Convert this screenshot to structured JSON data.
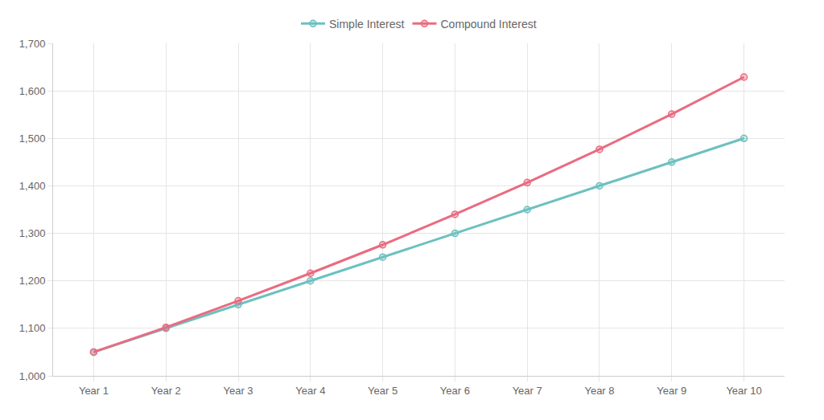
{
  "chart_data": {
    "type": "line",
    "categories": [
      "Year 1",
      "Year 2",
      "Year 3",
      "Year 4",
      "Year 5",
      "Year 6",
      "Year 7",
      "Year 8",
      "Year 9",
      "Year 10"
    ],
    "series": [
      {
        "name": "Simple Interest",
        "color": "#6cc0c0",
        "marker": "circle",
        "values": [
          1050,
          1100,
          1150,
          1200,
          1250,
          1300,
          1350,
          1400,
          1450,
          1500
        ]
      },
      {
        "name": "Compound Interest",
        "color": "#ea6b81",
        "marker": "circle",
        "values": [
          1050,
          1102,
          1158,
          1216,
          1276,
          1340,
          1407,
          1477,
          1551,
          1629
        ]
      }
    ],
    "ylim": [
      1000,
      1700
    ],
    "yticks": [
      {
        "value": 1000,
        "label": "1,000"
      },
      {
        "value": 1100,
        "label": "1,100"
      },
      {
        "value": 1200,
        "label": "1,200"
      },
      {
        "value": 1300,
        "label": "1,300"
      },
      {
        "value": 1400,
        "label": "1,400"
      },
      {
        "value": 1500,
        "label": "1,500"
      },
      {
        "value": 1600,
        "label": "1,600"
      },
      {
        "value": 1700,
        "label": "1,700"
      }
    ],
    "grid": true,
    "legend": "top"
  }
}
